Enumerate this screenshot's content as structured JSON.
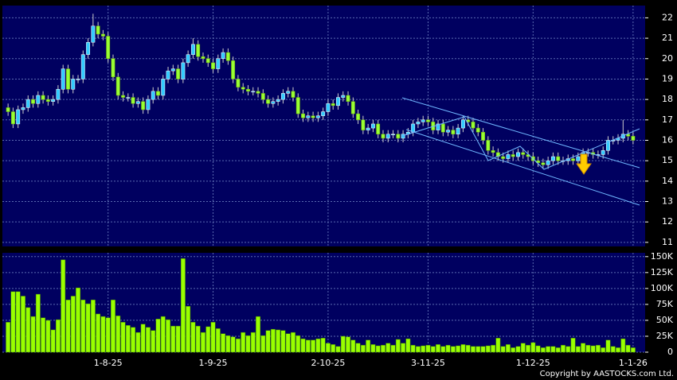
{
  "chart_data": {
    "type": "candlestick",
    "up_color": "#33ccff",
    "down_color": "#99ff33",
    "wick_color": "#cccccc",
    "panel_color": "#000060",
    "grid": true,
    "categories": [
      null,
      null,
      null,
      null,
      null,
      null,
      null,
      null,
      null,
      null,
      null,
      null,
      null,
      null,
      null,
      null,
      null,
      null,
      null,
      null,
      "1-8-25",
      null,
      null,
      null,
      null,
      null,
      null,
      null,
      null,
      null,
      null,
      null,
      null,
      null,
      null,
      null,
      null,
      null,
      null,
      null,
      null,
      "1-9-25",
      null,
      null,
      null,
      null,
      null,
      null,
      null,
      null,
      null,
      null,
      null,
      null,
      null,
      null,
      null,
      null,
      null,
      null,
      null,
      null,
      null,
      null,
      "2-10-25",
      null,
      null,
      null,
      null,
      null,
      null,
      null,
      null,
      null,
      null,
      null,
      null,
      null,
      null,
      null,
      null,
      null,
      null,
      null,
      "3-11-25",
      null,
      null,
      null,
      null,
      null,
      null,
      null,
      null,
      null,
      null,
      null,
      null,
      null,
      null,
      null,
      null,
      null,
      null,
      null,
      null,
      "1-12-25",
      null,
      null,
      null,
      null,
      null,
      null,
      null,
      null,
      null,
      null,
      null,
      null,
      null,
      null,
      null,
      null,
      null,
      null,
      null,
      "1-1-26"
    ],
    "open": [
      17.6,
      17.4,
      16.8,
      17.5,
      17.6,
      18.0,
      17.8,
      18.2,
      18.0,
      17.9,
      18.0,
      18.5,
      19.5,
      18.5,
      19.0,
      19.0,
      20.2,
      20.8,
      21.6,
      21.2,
      21.1,
      20.0,
      19.1,
      18.2,
      18.1,
      18.1,
      17.8,
      17.9,
      17.5,
      18.0,
      18.4,
      18.2,
      19.0,
      19.4,
      19.5,
      19.0,
      19.8,
      20.2,
      20.7,
      20.1,
      20.0,
      19.8,
      19.5,
      20.0,
      20.3,
      19.9,
      19.0,
      18.6,
      18.5,
      18.4,
      18.4,
      18.3,
      18.0,
      17.8,
      17.9,
      18.0,
      18.3,
      18.4,
      18.1,
      17.3,
      17.1,
      17.2,
      17.1,
      17.2,
      17.4,
      17.8,
      17.7,
      18.1,
      18.2,
      17.9,
      17.3,
      17.0,
      16.5,
      16.6,
      16.8,
      16.3,
      16.1,
      16.3,
      16.3,
      16.1,
      16.3,
      16.4,
      16.8,
      16.9,
      17.0,
      16.9,
      16.5,
      16.8,
      16.4,
      16.5,
      16.3,
      16.6,
      17.0,
      16.9,
      16.6,
      16.4,
      16.0,
      15.5,
      15.4,
      15.2,
      15.1,
      15.3,
      15.2,
      15.4,
      15.3,
      15.2,
      15.0,
      14.9,
      14.8,
      15.0,
      15.2,
      15.0,
      15.0,
      15.1,
      15.0,
      15.2,
      15.4,
      15.4,
      15.3,
      15.3,
      15.5,
      16.0,
      16.0,
      16.1,
      16.3,
      16.2
    ],
    "high": [
      17.8,
      17.6,
      17.7,
      17.8,
      18.2,
      18.2,
      18.4,
      18.4,
      18.2,
      18.2,
      18.7,
      19.7,
      19.7,
      19.2,
      19.2,
      20.4,
      21.0,
      22.2,
      21.8,
      21.4,
      21.3,
      20.2,
      19.3,
      18.4,
      18.3,
      18.3,
      18.1,
      18.1,
      18.2,
      18.6,
      18.6,
      19.2,
      19.6,
      19.7,
      19.7,
      20.0,
      20.4,
      21.0,
      20.9,
      20.3,
      20.2,
      20.0,
      20.2,
      20.5,
      20.5,
      20.1,
      19.2,
      18.8,
      18.7,
      18.6,
      18.6,
      18.5,
      18.2,
      18.1,
      18.2,
      18.5,
      18.6,
      18.6,
      18.3,
      17.5,
      17.4,
      17.4,
      17.4,
      17.6,
      18.0,
      18.0,
      18.3,
      18.4,
      18.4,
      18.1,
      17.5,
      17.2,
      16.8,
      17.0,
      17.0,
      16.5,
      16.5,
      16.5,
      16.5,
      16.5,
      16.6,
      17.0,
      17.1,
      17.2,
      17.2,
      17.1,
      17.0,
      17.0,
      16.7,
      16.7,
      16.8,
      17.2,
      17.2,
      17.1,
      16.8,
      16.6,
      16.2,
      15.7,
      15.6,
      15.4,
      15.5,
      15.5,
      15.6,
      15.6,
      15.5,
      15.4,
      15.2,
      15.1,
      15.2,
      15.4,
      15.4,
      15.2,
      15.3,
      15.3,
      15.4,
      15.6,
      15.6,
      15.6,
      15.5,
      15.7,
      16.2,
      16.2,
      16.3,
      17.0,
      16.5,
      16.4
    ],
    "low": [
      17.2,
      16.6,
      16.6,
      17.3,
      17.4,
      17.6,
      17.6,
      17.8,
      17.7,
      17.7,
      17.8,
      18.3,
      18.3,
      18.3,
      18.8,
      18.8,
      20.0,
      20.6,
      21.0,
      20.9,
      19.8,
      18.9,
      18.0,
      17.9,
      17.9,
      17.6,
      17.6,
      17.3,
      17.3,
      17.8,
      18.0,
      18.0,
      18.8,
      19.2,
      18.8,
      18.8,
      19.6,
      20.0,
      19.9,
      19.8,
      19.6,
      19.3,
      19.3,
      19.8,
      19.7,
      18.8,
      18.4,
      18.3,
      18.2,
      18.2,
      18.1,
      17.8,
      17.6,
      17.6,
      17.7,
      17.8,
      18.1,
      17.9,
      17.1,
      16.9,
      16.9,
      16.9,
      16.9,
      17.0,
      17.2,
      17.5,
      17.5,
      17.9,
      17.7,
      17.1,
      16.8,
      16.3,
      16.3,
      16.4,
      16.1,
      15.9,
      15.9,
      16.1,
      15.9,
      15.9,
      16.1,
      16.2,
      16.6,
      16.7,
      16.7,
      16.3,
      16.3,
      16.2,
      16.2,
      16.1,
      16.1,
      16.4,
      16.7,
      16.4,
      16.2,
      15.8,
      15.3,
      15.2,
      15.0,
      14.9,
      14.9,
      15.0,
      15.0,
      15.1,
      15.0,
      14.8,
      14.7,
      14.6,
      14.6,
      14.8,
      14.8,
      14.8,
      14.8,
      14.8,
      14.8,
      15.0,
      15.2,
      15.1,
      15.1,
      15.1,
      15.3,
      15.8,
      15.8,
      15.9,
      16.0,
      15.8
    ],
    "close": [
      17.4,
      16.8,
      17.5,
      17.6,
      18.0,
      17.8,
      18.2,
      18.0,
      17.9,
      18.0,
      18.5,
      19.5,
      18.5,
      19.0,
      19.0,
      20.2,
      20.8,
      21.6,
      21.2,
      21.1,
      20.0,
      19.1,
      18.2,
      18.1,
      18.1,
      17.8,
      17.9,
      17.5,
      18.0,
      18.4,
      18.2,
      19.0,
      19.4,
      19.5,
      19.0,
      19.8,
      20.2,
      20.7,
      20.1,
      20.0,
      19.8,
      19.5,
      20.0,
      20.3,
      19.9,
      19.0,
      18.6,
      18.5,
      18.4,
      18.4,
      18.3,
      18.0,
      17.8,
      17.9,
      18.0,
      18.3,
      18.4,
      18.1,
      17.3,
      17.1,
      17.2,
      17.1,
      17.2,
      17.4,
      17.8,
      17.7,
      18.1,
      18.2,
      17.9,
      17.3,
      17.0,
      16.5,
      16.6,
      16.8,
      16.3,
      16.1,
      16.3,
      16.3,
      16.1,
      16.3,
      16.4,
      16.8,
      16.9,
      17.0,
      16.9,
      16.5,
      16.8,
      16.4,
      16.5,
      16.3,
      16.6,
      17.0,
      16.9,
      16.6,
      16.4,
      16.0,
      15.5,
      15.4,
      15.2,
      15.1,
      15.3,
      15.2,
      15.4,
      15.3,
      15.2,
      15.0,
      14.9,
      14.8,
      15.0,
      15.2,
      15.0,
      15.0,
      15.1,
      15.0,
      15.2,
      15.4,
      15.4,
      15.3,
      15.3,
      15.5,
      16.0,
      16.0,
      16.1,
      16.3,
      16.2,
      16.0
    ],
    "ylim": [
      10.8,
      22.6
    ],
    "yticks": [
      11,
      12,
      13,
      14,
      15,
      16,
      17,
      18,
      19,
      20,
      21,
      22
    ],
    "volume": {
      "type": "bar",
      "color": "#99ff00",
      "values": [
        47000,
        95000,
        95000,
        88000,
        70000,
        56000,
        91000,
        54000,
        50000,
        35000,
        51000,
        145000,
        82000,
        88000,
        101000,
        82000,
        76000,
        82000,
        60000,
        56000,
        54000,
        82000,
        57000,
        47000,
        42000,
        39000,
        31000,
        44000,
        39000,
        34000,
        52000,
        56000,
        51000,
        41000,
        41000,
        147000,
        72000,
        47000,
        41000,
        31000,
        40000,
        47000,
        37000,
        29000,
        26000,
        24000,
        21000,
        31000,
        26000,
        31000,
        56000,
        26000,
        34000,
        36000,
        35000,
        34000,
        29000,
        31000,
        26000,
        21000,
        19000,
        19000,
        21000,
        22000,
        14000,
        12000,
        9000,
        25000,
        24000,
        19000,
        14000,
        11000,
        19000,
        12000,
        10000,
        11000,
        14000,
        11000,
        20000,
        14000,
        21000,
        11000,
        9000,
        10000,
        11000,
        9000,
        12000,
        9000,
        11000,
        9000,
        10000,
        12000,
        11000,
        9000,
        9000,
        9000,
        10000,
        11000,
        22000,
        9000,
        12000,
        7000,
        9000,
        14000,
        11000,
        15000,
        10000,
        7000,
        9000,
        9000,
        7000,
        11000,
        9000,
        22000,
        9000,
        14000,
        11000,
        10000,
        11000,
        7000,
        19000,
        9000,
        7000,
        21000,
        11000,
        7000
      ],
      "ylim": [
        0,
        156000
      ],
      "yticks": [
        0,
        {
          "value": 25000,
          "label": "25K"
        },
        {
          "value": 50000,
          "label": "50K"
        },
        {
          "value": 75000,
          "label": "75K"
        },
        {
          "value": 100000,
          "label": "100K"
        },
        {
          "value": 125000,
          "label": "125K"
        },
        {
          "value": 150000,
          "label": "150K"
        }
      ]
    },
    "copyright": "Copyright by AASTOCKS.com Ltd."
  }
}
